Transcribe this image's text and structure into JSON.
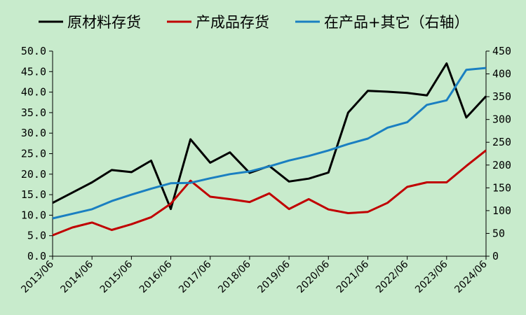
{
  "chart_data": {
    "type": "line",
    "x": [
      "2013/06",
      "2013/12",
      "2014/06",
      "2014/12",
      "2015/06",
      "2015/12",
      "2016/06",
      "2016/12",
      "2017/06",
      "2017/12",
      "2018/06",
      "2018/12",
      "2019/06",
      "2019/12",
      "2020/06",
      "2020/12",
      "2021/06",
      "2021/12",
      "2022/06",
      "2022/12",
      "2023/06",
      "2023/12",
      "2024/06"
    ],
    "xticks": [
      "2013/06",
      "2014/06",
      "2015/06",
      "2016/06",
      "2017/06",
      "2018/06",
      "2019/06",
      "2020/06",
      "2021/06",
      "2022/06",
      "2023/06",
      "2024/06"
    ],
    "series": [
      {
        "name": "原材料存货",
        "axis": "left",
        "color": "#000000",
        "values": [
          13.0,
          15.5,
          18.0,
          21.0,
          20.5,
          23.3,
          11.5,
          28.5,
          22.8,
          25.3,
          20.3,
          22.0,
          18.2,
          18.9,
          20.4,
          35.0,
          40.3,
          40.1,
          39.8,
          39.2,
          47.0,
          33.8,
          39.0
        ]
      },
      {
        "name": "产成品存货",
        "axis": "left",
        "color": "#c00000",
        "values": [
          5.1,
          7.0,
          8.2,
          6.4,
          7.8,
          9.5,
          12.8,
          18.4,
          14.5,
          13.9,
          13.2,
          15.3,
          11.5,
          13.9,
          11.4,
          10.5,
          10.8,
          13.0,
          16.9,
          18.0,
          18.0,
          22.0,
          25.8
        ]
      },
      {
        "name": "在产品+其它（右轴）",
        "axis": "right",
        "color": "#1a7fc1",
        "values": [
          83,
          93,
          103,
          121,
          135,
          148,
          160,
          161,
          171,
          180,
          186,
          197,
          210,
          220,
          232,
          246,
          258,
          282,
          294,
          332,
          342,
          409,
          413
        ]
      }
    ],
    "yleft": {
      "ylim": [
        0,
        50
      ],
      "ticks": [
        "0.0",
        "5.0",
        "10.0",
        "15.0",
        "20.0",
        "25.0",
        "30.0",
        "35.0",
        "40.0",
        "45.0",
        "50.0"
      ]
    },
    "yright": {
      "ylim": [
        0,
        450
      ],
      "ticks": [
        "0",
        "50",
        "100",
        "150",
        "200",
        "250",
        "300",
        "350",
        "400",
        "450"
      ]
    },
    "legend_position": "top",
    "grid": false
  }
}
